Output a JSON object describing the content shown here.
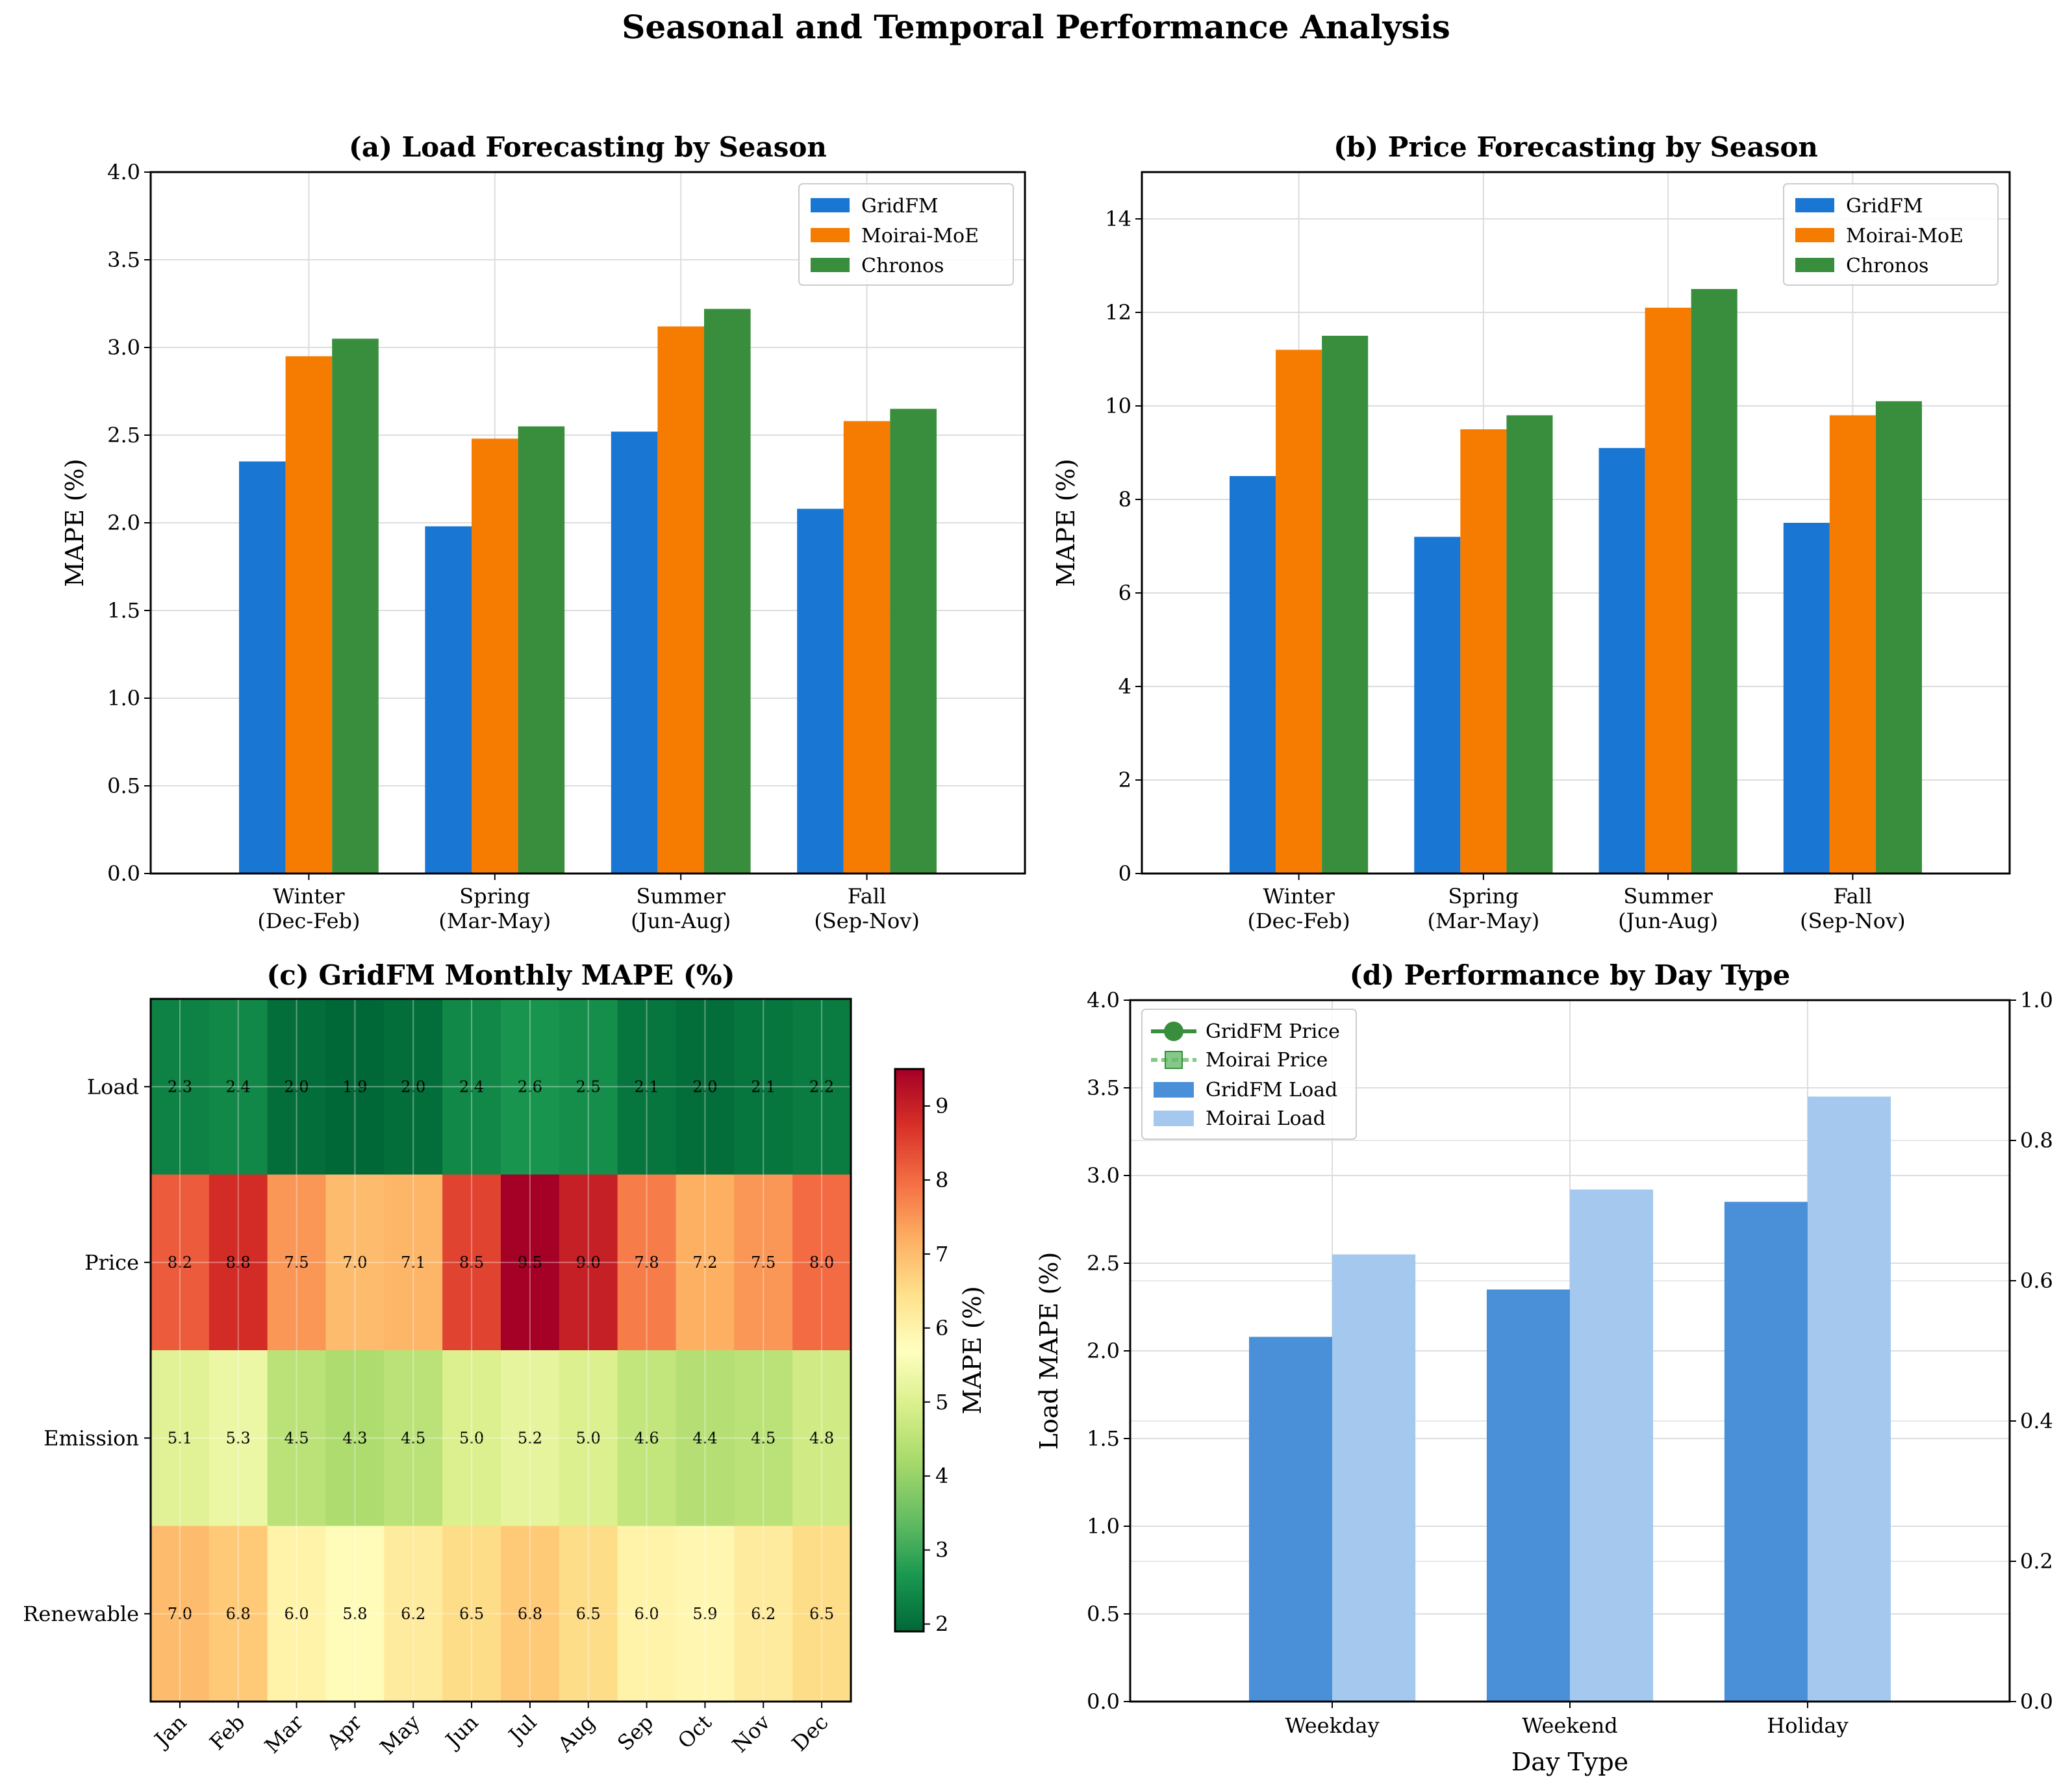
{
  "figure": {
    "title": "Seasonal and Temporal Performance Analysis"
  },
  "colors": {
    "gridfm": "#1976d2",
    "moirai": "#f57c00",
    "chronos": "#388e3c",
    "gridfm_load": "#4a90d9",
    "moirai_load": "#a4c8ee",
    "gridfm_price": "#388e3c",
    "moirai_price": "#66bb6a"
  },
  "chart_data": [
    {
      "id": "a",
      "type": "bar",
      "title": "(a) Load Forecasting by Season",
      "xlabel": "",
      "ylabel": "MAPE (%)",
      "ylim": [
        0,
        4.0
      ],
      "yticks": [
        "0.0",
        "0.5",
        "1.0",
        "1.5",
        "2.0",
        "2.5",
        "3.0",
        "3.5",
        "4.0"
      ],
      "categories": [
        "Winter\n(Dec-Feb)",
        "Spring\n(Mar-May)",
        "Summer\n(Jun-Aug)",
        "Fall\n(Sep-Nov)"
      ],
      "series": [
        {
          "name": "GridFM",
          "values": [
            2.35,
            1.98,
            2.52,
            2.08
          ]
        },
        {
          "name": "Moirai-MoE",
          "values": [
            2.95,
            2.48,
            3.12,
            2.58
          ]
        },
        {
          "name": "Chronos",
          "values": [
            3.05,
            2.55,
            3.22,
            2.65
          ]
        }
      ],
      "legend": "top-right",
      "grid": true
    },
    {
      "id": "b",
      "type": "bar",
      "title": "(b) Price Forecasting by Season",
      "xlabel": "",
      "ylabel": "MAPE (%)",
      "ylim": [
        0,
        15
      ],
      "yticks": [
        "0",
        "2",
        "4",
        "6",
        "8",
        "10",
        "12",
        "14"
      ],
      "categories": [
        "Winter\n(Dec-Feb)",
        "Spring\n(Mar-May)",
        "Summer\n(Jun-Aug)",
        "Fall\n(Sep-Nov)"
      ],
      "series": [
        {
          "name": "GridFM",
          "values": [
            8.5,
            7.2,
            9.1,
            7.5
          ]
        },
        {
          "name": "Moirai-MoE",
          "values": [
            11.2,
            9.5,
            12.1,
            9.8
          ]
        },
        {
          "name": "Chronos",
          "values": [
            11.5,
            9.8,
            12.5,
            10.1
          ]
        }
      ],
      "legend": "top-right",
      "grid": true
    },
    {
      "id": "c",
      "type": "heatmap",
      "title": "(c) GridFM Monthly MAPE (%)",
      "x_categories": [
        "Jan",
        "Feb",
        "Mar",
        "Apr",
        "May",
        "Jun",
        "Jul",
        "Aug",
        "Sep",
        "Oct",
        "Nov",
        "Dec"
      ],
      "y_categories": [
        "Load",
        "Price",
        "Emission",
        "Renewable"
      ],
      "values": [
        [
          2.3,
          2.4,
          2.0,
          1.9,
          2.0,
          2.4,
          2.6,
          2.5,
          2.1,
          2.0,
          2.1,
          2.2
        ],
        [
          8.2,
          8.8,
          7.5,
          7.0,
          7.1,
          8.5,
          9.5,
          9.0,
          7.8,
          7.2,
          7.5,
          8.0
        ],
        [
          5.1,
          5.3,
          4.5,
          4.3,
          4.5,
          5.0,
          5.2,
          5.0,
          4.6,
          4.4,
          4.5,
          4.8
        ],
        [
          7.0,
          6.8,
          6.0,
          5.8,
          6.2,
          6.5,
          6.8,
          6.5,
          6.0,
          5.9,
          6.2,
          6.5
        ]
      ],
      "colormap": "RdYlGn_r",
      "colorbar": {
        "label": "MAPE (%)",
        "range": [
          1.9,
          9.5
        ],
        "ticks": [
          "2",
          "3",
          "4",
          "5",
          "6",
          "7",
          "8",
          "9"
        ]
      }
    },
    {
      "id": "d",
      "type": "bar",
      "title": "(d) Performance by Day Type",
      "xlabel": "Day Type",
      "ylabel": "Load MAPE (%)",
      "ylim": [
        0,
        4.0
      ],
      "yticks": [
        "0.0",
        "0.5",
        "1.0",
        "1.5",
        "2.0",
        "2.5",
        "3.0",
        "3.5",
        "4.0"
      ],
      "y2lim": [
        0,
        1.0
      ],
      "y2ticks": [
        "0.0",
        "0.2",
        "0.4",
        "0.6",
        "0.8",
        "1.0"
      ],
      "categories": [
        "Weekday",
        "Weekend",
        "Holiday"
      ],
      "series": [
        {
          "name": "GridFM Load",
          "values": [
            2.08,
            2.35,
            2.85
          ]
        },
        {
          "name": "Moirai Load",
          "values": [
            2.55,
            2.92,
            3.45
          ]
        }
      ],
      "line_series_legend_only": [
        {
          "name": "GridFM Price",
          "marker": "circle"
        },
        {
          "name": "Moirai Price",
          "marker": "square"
        }
      ],
      "legend": "top-left",
      "grid": true
    }
  ]
}
